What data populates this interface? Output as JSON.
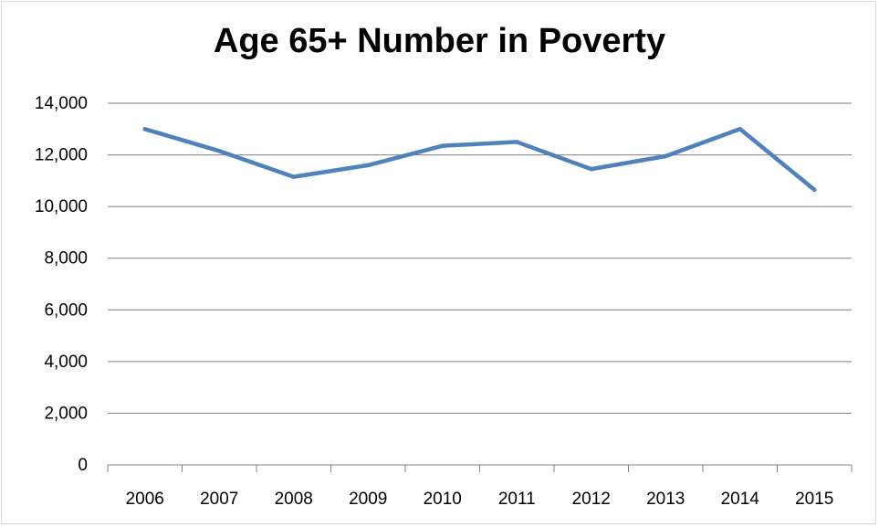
{
  "chart_data": {
    "type": "line",
    "title": "Age 65+ Number in Poverty",
    "xlabel": "",
    "ylabel": "",
    "categories": [
      "2006",
      "2007",
      "2008",
      "2009",
      "2010",
      "2011",
      "2012",
      "2013",
      "2014",
      "2015"
    ],
    "series": [
      {
        "values": [
          13000,
          12150,
          11150,
          11600,
          12350,
          12500,
          11450,
          11950,
          13000,
          10650
        ],
        "color": "#4f81bd"
      }
    ],
    "ylim": [
      0,
      14000
    ],
    "yticks": [
      0,
      2000,
      4000,
      6000,
      8000,
      10000,
      12000,
      14000
    ],
    "ytick_labels": [
      "0",
      "2,000",
      "4,000",
      "6,000",
      "8,000",
      "10,000",
      "12,000",
      "14,000"
    ],
    "grid": true,
    "legend": "none",
    "colors": {
      "gridline": "#808080",
      "axis": "#808080"
    }
  }
}
